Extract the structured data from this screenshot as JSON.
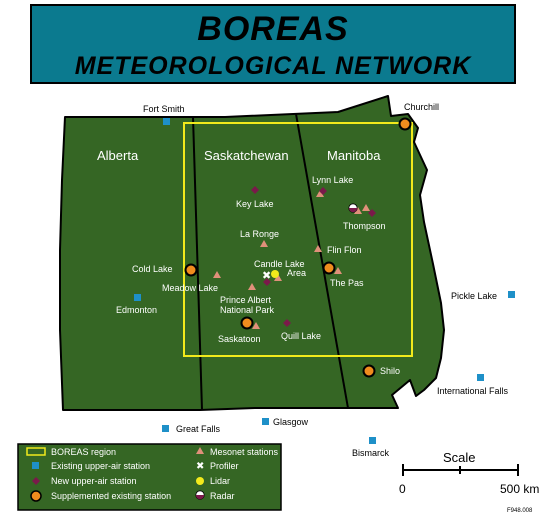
{
  "title": {
    "line1": "BOREAS",
    "line2": "METEOROLOGICAL NETWORK"
  },
  "colors": {
    "land": "#356624",
    "title_bg": "#0b7a8f",
    "boreas_region": "#f2ea1c",
    "existing_upper_air": "#1e90c8",
    "new_upper_air": "#7a1a4a",
    "supplemented": "#f08c1e",
    "mesonet": "#e0907a",
    "lidar": "#f2ea1c"
  },
  "provinces": [
    {
      "id": "alberta",
      "label": "Alberta"
    },
    {
      "id": "saskatchewan",
      "label": "Saskatchewan"
    },
    {
      "id": "manitoba",
      "label": "Manitoba"
    }
  ],
  "places": {
    "fort_smith": "Fort Smith",
    "churchill": "Churchill",
    "lynn_lake": "Lynn Lake",
    "key_lake": "Key Lake",
    "thompson": "Thompson",
    "la_ronge": "La Ronge",
    "flin_flon": "Flin Flon",
    "candle_lake_1": "Candle Lake",
    "candle_lake_2": "Area",
    "cold_lake": "Cold Lake",
    "meadow_lake": "Meadow Lake",
    "the_pas": "The Pas",
    "edmonton": "Edmonton",
    "pa_park_1": "Prince Albert",
    "pa_park_2": "National Park",
    "pickle_lake": "Pickle Lake",
    "quill_lake": "Quill Lake",
    "saskatoon": "Saskatoon",
    "shilo": "Shilo",
    "international_falls": "International Falls",
    "glasgow": "Glasgow",
    "great_falls": "Great Falls",
    "bismarck": "Bismarck"
  },
  "legend": {
    "boreas_region": "BOREAS region",
    "existing_upper_air": "Existing upper-air station",
    "new_upper_air": "New upper-air station",
    "supplemented": "Supplemented existing station",
    "mesonet": "Mesonet stations",
    "profiler": "Profiler",
    "lidar": "Lidar",
    "radar": "Radar"
  },
  "scale": {
    "label": "Scale",
    "min_label": "0",
    "max_label": "500 km"
  },
  "figure_id": "F948.008"
}
